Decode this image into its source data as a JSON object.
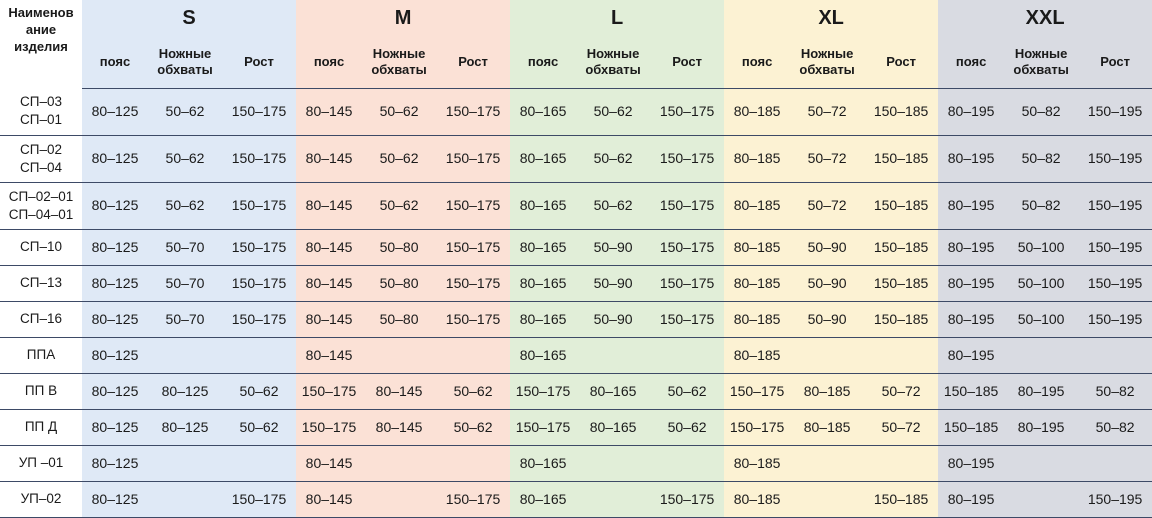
{
  "header": {
    "name_label": "Наименов ание изделия",
    "sizes": [
      "S",
      "M",
      "L",
      "XL",
      "XXL"
    ],
    "sub_labels": [
      "пояс",
      "Ножные обхваты",
      "Рост"
    ]
  },
  "colors": {
    "S": "#dfe9f6",
    "M": "#fbe1d6",
    "L": "#e1eed8",
    "XL": "#fcf2d3",
    "XXL": "#d9dbe2",
    "divider": "#3d4a66"
  },
  "rows": [
    {
      "name": [
        "СП–03",
        "СП–01"
      ],
      "cells": [
        [
          "80–125",
          "50–62",
          "150–175"
        ],
        [
          "80–145",
          "50–62",
          "150–175"
        ],
        [
          "80–165",
          "50–62",
          "150–175"
        ],
        [
          "80–185",
          "50–72",
          "150–185"
        ],
        [
          "80–195",
          "50–82",
          "150–195"
        ]
      ]
    },
    {
      "name": [
        "СП–02",
        "СП–04"
      ],
      "cells": [
        [
          "80–125",
          "50–62",
          "150–175"
        ],
        [
          "80–145",
          "50–62",
          "150–175"
        ],
        [
          "80–165",
          "50–62",
          "150–175"
        ],
        [
          "80–185",
          "50–72",
          "150–185"
        ],
        [
          "80–195",
          "50–82",
          "150–195"
        ]
      ]
    },
    {
      "name": [
        "СП–02–01",
        "СП–04–01"
      ],
      "cells": [
        [
          "80–125",
          "50–62",
          "150–175"
        ],
        [
          "80–145",
          "50–62",
          "150–175"
        ],
        [
          "80–165",
          "50–62",
          "150–175"
        ],
        [
          "80–185",
          "50–72",
          "150–185"
        ],
        [
          "80–195",
          "50–82",
          "150–195"
        ]
      ]
    },
    {
      "name": [
        "СП–10"
      ],
      "cells": [
        [
          "80–125",
          "50–70",
          "150–175"
        ],
        [
          "80–145",
          "50–80",
          "150–175"
        ],
        [
          "80–165",
          "50–90",
          "150–175"
        ],
        [
          "80–185",
          "50–90",
          "150–185"
        ],
        [
          "80–195",
          "50–100",
          "150–195"
        ]
      ]
    },
    {
      "name": [
        "СП–13"
      ],
      "cells": [
        [
          "80–125",
          "50–70",
          "150–175"
        ],
        [
          "80–145",
          "50–80",
          "150–175"
        ],
        [
          "80–165",
          "50–90",
          "150–175"
        ],
        [
          "80–185",
          "50–90",
          "150–185"
        ],
        [
          "80–195",
          "50–100",
          "150–195"
        ]
      ]
    },
    {
      "name": [
        "СП–16"
      ],
      "cells": [
        [
          "80–125",
          "50–70",
          "150–175"
        ],
        [
          "80–145",
          "50–80",
          "150–175"
        ],
        [
          "80–165",
          "50–90",
          "150–175"
        ],
        [
          "80–185",
          "50–90",
          "150–185"
        ],
        [
          "80–195",
          "50–100",
          "150–195"
        ]
      ]
    },
    {
      "name": [
        "ППА"
      ],
      "cells": [
        [
          "80–125",
          "",
          ""
        ],
        [
          "80–145",
          "",
          ""
        ],
        [
          "80–165",
          "",
          ""
        ],
        [
          "80–185",
          "",
          ""
        ],
        [
          "80–195",
          "",
          ""
        ]
      ]
    },
    {
      "name": [
        "ПП В"
      ],
      "cells": [
        [
          "80–125",
          "80–125",
          "50–62"
        ],
        [
          "150–175",
          "80–145",
          "50–62"
        ],
        [
          "150–175",
          "80–165",
          "50–62"
        ],
        [
          "150–175",
          "80–185",
          "50–72"
        ],
        [
          "150–185",
          "80–195",
          "50–82"
        ]
      ]
    },
    {
      "name": [
        "ПП Д"
      ],
      "cells": [
        [
          "80–125",
          "80–125",
          "50–62"
        ],
        [
          "150–175",
          "80–145",
          "50–62"
        ],
        [
          "150–175",
          "80–165",
          "50–62"
        ],
        [
          "150–175",
          "80–185",
          "50–72"
        ],
        [
          "150–185",
          "80–195",
          "50–82"
        ]
      ]
    },
    {
      "name": [
        "УП –01"
      ],
      "cells": [
        [
          "80–125",
          "",
          ""
        ],
        [
          "80–145",
          "",
          ""
        ],
        [
          "80–165",
          "",
          ""
        ],
        [
          "80–185",
          "",
          ""
        ],
        [
          "80–195",
          "",
          ""
        ]
      ]
    },
    {
      "name": [
        "УП–02"
      ],
      "cells": [
        [
          "80–125",
          "",
          "150–175"
        ],
        [
          "80–145",
          "",
          "150–175"
        ],
        [
          "80–165",
          "",
          "150–175"
        ],
        [
          "80–185",
          "",
          "150–185"
        ],
        [
          "80–195",
          "",
          "150–195"
        ]
      ]
    }
  ]
}
